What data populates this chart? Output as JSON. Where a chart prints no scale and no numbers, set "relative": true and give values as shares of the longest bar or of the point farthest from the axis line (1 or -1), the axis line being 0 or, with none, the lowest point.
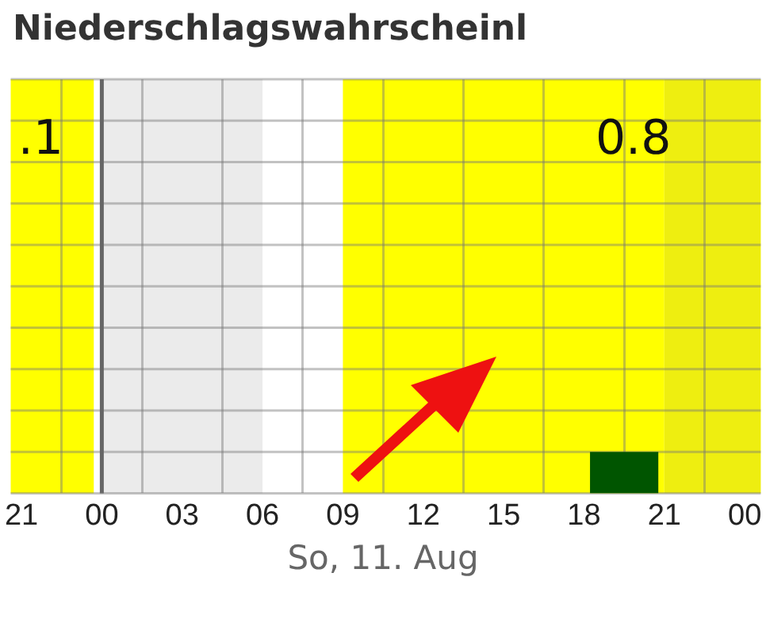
{
  "chart_data": {
    "type": "bar",
    "title": "Niederschlagswahrscheinl",
    "xlabel": "So, 11. Aug",
    "relative": true,
    "x": [
      "--08-10T22:30",
      "--08-11T01:30",
      "--08-11T04:30",
      "--08-11T07:30",
      "--08-11T10:30",
      "--08-11T13:30",
      "--08-11T16:30",
      "--08-11T19:30",
      "--08-11T22:30"
    ],
    "series": [
      {
        "color": "#005500",
        "values": [
          0,
          0,
          0,
          0,
          0,
          0,
          0,
          1,
          0
        ]
      }
    ],
    "xlim": [
      "--08-10T20:36",
      "--08-12T00:36"
    ],
    "xticks": [
      {
        "value": "--08-10T21:00",
        "label": "21"
      },
      {
        "value": "--08-11T00:00",
        "label": "00"
      },
      {
        "value": "--08-11T03:00",
        "label": "03"
      },
      {
        "value": "--08-11T06:00",
        "label": "06"
      },
      {
        "value": "--08-11T09:00",
        "label": "09"
      },
      {
        "value": "--08-11T12:00",
        "label": "12"
      },
      {
        "value": "--08-11T15:00",
        "label": "15"
      },
      {
        "value": "--08-11T18:00",
        "label": "18"
      },
      {
        "value": "--08-11T21:00",
        "label": "21"
      },
      {
        "value": "--08-12T00:00",
        "label": "00"
      }
    ],
    "bands": [
      {
        "axis": "x",
        "from": "--08-10T20:36",
        "to": "--08-10T23:42",
        "color": "#ffff00"
      },
      {
        "axis": "x",
        "from": "--08-11T00:00",
        "to": "--08-11T06:00",
        "color": "#ebebeb"
      },
      {
        "axis": "x",
        "from": "--08-11T09:00",
        "to": "--08-11T21:00",
        "color": "#ffff00"
      },
      {
        "axis": "x",
        "from": "--08-11T21:00",
        "to": "--08-12T00:36",
        "color": "#eeee10"
      }
    ],
    "ref_lines": [
      {
        "axis": "x",
        "value": "--08-11T00:00",
        "color": "#666666"
      }
    ],
    "annotations": [
      ".1",
      "0.8"
    ],
    "grid": true,
    "legend": false
  }
}
